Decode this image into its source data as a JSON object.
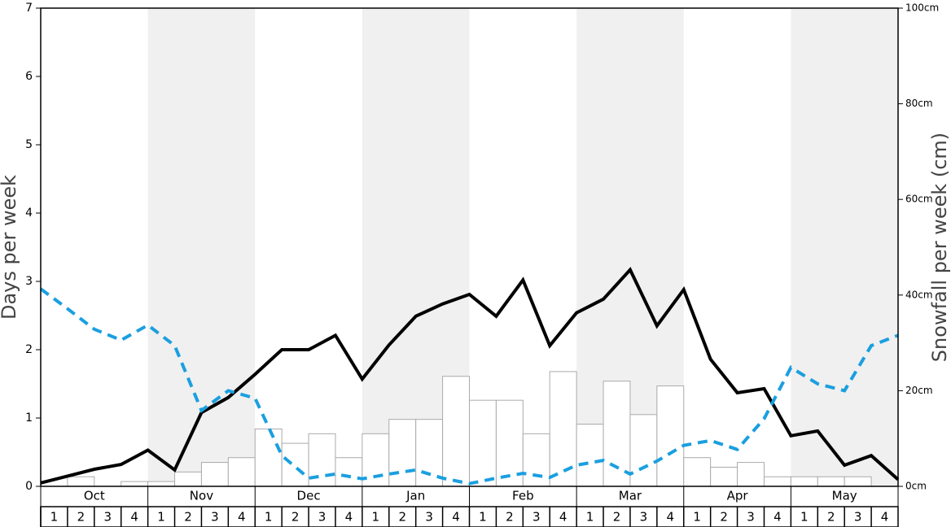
{
  "chart_data": {
    "type": "bar",
    "ylabel": "Days per week",
    "y2label": "Snowfall per week (cm)",
    "months": [
      "Oct",
      "Nov",
      "Dec",
      "Jan",
      "Feb",
      "Mar",
      "Apr",
      "May"
    ],
    "weeks": [
      "1",
      "2",
      "3",
      "4"
    ],
    "ylim": [
      0,
      7
    ],
    "yticks": [
      0,
      1,
      2,
      3,
      4,
      5,
      6,
      7
    ],
    "y2lim": [
      0,
      100
    ],
    "y2ticks": [
      {
        "value": 0,
        "label": "0cm"
      },
      {
        "value": 20,
        "label": "20cm"
      },
      {
        "value": 40,
        "label": "40cm"
      },
      {
        "value": 60,
        "label": "60cm"
      },
      {
        "value": 80,
        "label": "80cm"
      },
      {
        "value": 100,
        "label": "100cm"
      }
    ],
    "series": [
      {
        "type": "bar",
        "axis": "y2",
        "color": "#ffffff",
        "values": [
          0,
          2,
          0,
          1,
          1,
          3,
          5,
          6,
          12,
          9,
          11,
          6,
          11,
          14,
          14,
          23,
          18,
          18,
          11,
          24,
          13,
          22,
          15,
          21,
          6,
          4,
          5,
          2,
          2,
          2,
          2,
          0
        ]
      },
      {
        "type": "line",
        "color": "#000000",
        "values": [
          0.05,
          0.15,
          0.25,
          0.32,
          0.53,
          0.24,
          1.08,
          1.3,
          1.64,
          2.0,
          2.0,
          2.21,
          1.57,
          2.07,
          2.49,
          2.67,
          2.81,
          2.49,
          3.02,
          2.06,
          2.54,
          2.74,
          3.17,
          2.35,
          2.88,
          1.86,
          1.37,
          1.43,
          0.74,
          0.81,
          0.31,
          0.45,
          0.1
        ]
      },
      {
        "type": "line",
        "color": "#1a9fe0",
        "dashed": true,
        "values": [
          2.89,
          2.6,
          2.3,
          2.14,
          2.36,
          2.06,
          1.11,
          1.4,
          1.29,
          0.45,
          0.12,
          0.18,
          0.11,
          0.18,
          0.24,
          0.12,
          0.04,
          0.12,
          0.19,
          0.13,
          0.31,
          0.38,
          0.18,
          0.37,
          0.6,
          0.67,
          0.54,
          0.99,
          1.74,
          1.5,
          1.4,
          2.06,
          2.21
        ]
      }
    ]
  }
}
